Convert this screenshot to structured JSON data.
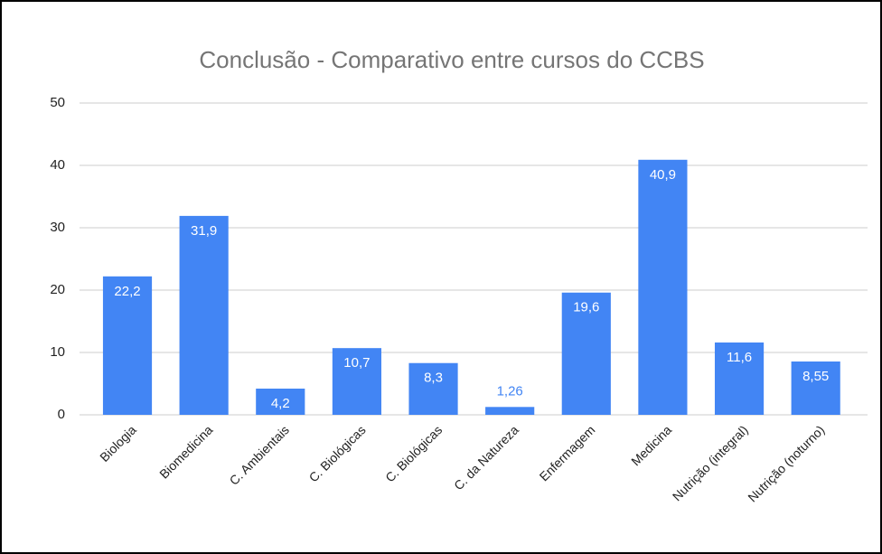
{
  "chart_data": {
    "type": "bar",
    "title": "Conclusão - Comparativo entre cursos do CCBS",
    "categories": [
      "Biologia",
      "Biomedicina",
      "C. Ambientais",
      "C. Biológicas",
      "C. Biológicas",
      "C. da Natureza",
      "Enfermagem",
      "Medicina",
      "Nutrição (integral)",
      "Nutrição (noturno)"
    ],
    "values": [
      22.2,
      31.9,
      4.2,
      10.7,
      8.3,
      1.26,
      19.6,
      40.9,
      11.6,
      8.55
    ],
    "value_labels": [
      "22,2",
      "31,9",
      "4,2",
      "10,7",
      "8,3",
      "1,26",
      "19,6",
      "40,9",
      "11,6",
      "8,55"
    ],
    "color": "#4285f4",
    "ylim": [
      0,
      50
    ],
    "yticks": [
      0,
      10,
      20,
      30,
      40,
      50
    ],
    "grid": true
  }
}
